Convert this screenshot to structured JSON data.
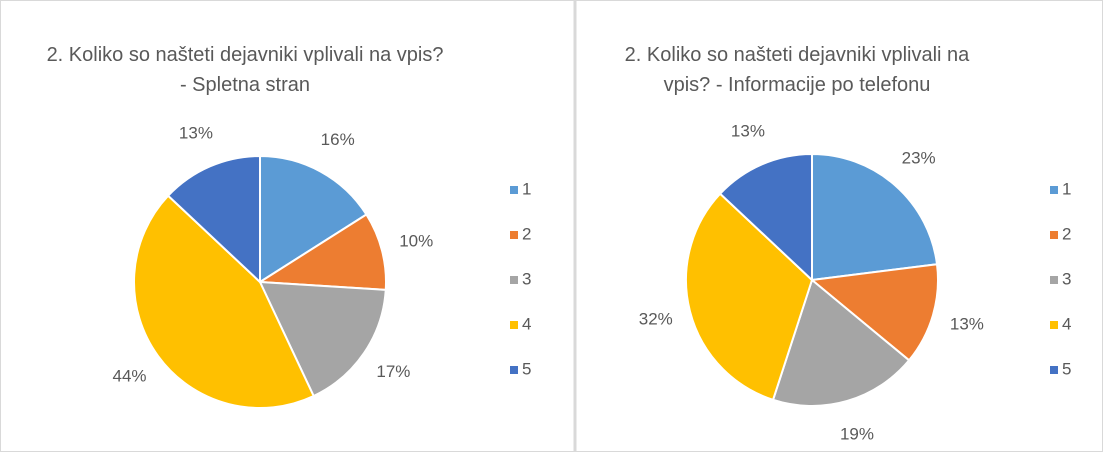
{
  "chart_data": [
    {
      "type": "pie",
      "title": "2. Koliko so našteti dejavniki vplivali na vpis? - Spletna stran",
      "categories": [
        "1",
        "2",
        "3",
        "4",
        "5"
      ],
      "values": [
        16,
        10,
        17,
        44,
        13
      ],
      "value_labels": [
        "16%",
        "10%",
        "17%",
        "44%",
        "13%"
      ],
      "colors": [
        "#5b9bd5",
        "#ed7d31",
        "#a5a5a5",
        "#ffc000",
        "#4472c4"
      ],
      "legend": "right"
    },
    {
      "type": "pie",
      "title": "2. Koliko so našteti dejavniki vplivali na vpis? - Informacije po telefonu",
      "categories": [
        "1",
        "2",
        "3",
        "4",
        "5"
      ],
      "values": [
        23,
        13,
        19,
        32,
        13
      ],
      "value_labels": [
        "23%",
        "13%",
        "19%",
        "32%",
        "13%"
      ],
      "colors": [
        "#5b9bd5",
        "#ed7d31",
        "#a5a5a5",
        "#ffc000",
        "#4472c4"
      ],
      "legend": "right"
    }
  ]
}
